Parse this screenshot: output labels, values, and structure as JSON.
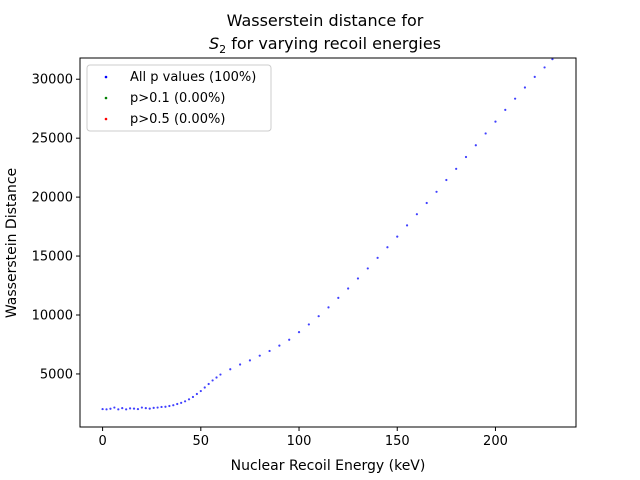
{
  "chart_data": {
    "type": "scatter",
    "title_line1": "Wasserstein distance for",
    "title_line2_math": "S",
    "title_line2_sub": "2",
    "title_line2_rest": " for varying recoil energies",
    "xlabel": "Nuclear Recoil Energy (keV)",
    "ylabel": "Wasserstein Distance",
    "xlim": [
      -11.5,
      241
    ],
    "ylim": [
      500,
      31800
    ],
    "x_ticks": [
      0,
      50,
      100,
      150,
      200
    ],
    "x_tick_labels": [
      "0",
      "50",
      "100",
      "150",
      "200"
    ],
    "y_ticks": [
      5000,
      10000,
      15000,
      20000,
      25000,
      30000
    ],
    "y_tick_labels": [
      "5000",
      "10000",
      "15000",
      "20000",
      "25000",
      "30000"
    ],
    "grid": false,
    "legend_position": "top-left",
    "series": [
      {
        "name": "All p values (100%)",
        "color": "#0000ff",
        "points": [
          [
            0,
            2020
          ],
          [
            2,
            2000
          ],
          [
            4,
            2050
          ],
          [
            6,
            2150
          ],
          [
            8,
            2000
          ],
          [
            10,
            2100
          ],
          [
            12,
            2000
          ],
          [
            14,
            2080
          ],
          [
            16,
            2060
          ],
          [
            18,
            2020
          ],
          [
            20,
            2150
          ],
          [
            22,
            2100
          ],
          [
            24,
            2060
          ],
          [
            26,
            2120
          ],
          [
            28,
            2150
          ],
          [
            30,
            2200
          ],
          [
            32,
            2220
          ],
          [
            34,
            2280
          ],
          [
            36,
            2350
          ],
          [
            38,
            2450
          ],
          [
            40,
            2550
          ],
          [
            42,
            2680
          ],
          [
            44,
            2850
          ],
          [
            46,
            3050
          ],
          [
            48,
            3300
          ],
          [
            50,
            3550
          ],
          [
            52,
            3850
          ],
          [
            54,
            4150
          ],
          [
            56,
            4450
          ],
          [
            58,
            4700
          ],
          [
            60,
            4950
          ],
          [
            65,
            5400
          ],
          [
            70,
            5800
          ],
          [
            75,
            6150
          ],
          [
            80,
            6550
          ],
          [
            85,
            6950
          ],
          [
            90,
            7400
          ],
          [
            95,
            7900
          ],
          [
            100,
            8550
          ],
          [
            105,
            9200
          ],
          [
            110,
            9900
          ],
          [
            115,
            10650
          ],
          [
            120,
            11450
          ],
          [
            125,
            12250
          ],
          [
            130,
            13100
          ],
          [
            135,
            13950
          ],
          [
            140,
            14850
          ],
          [
            145,
            15750
          ],
          [
            150,
            16650
          ],
          [
            155,
            17600
          ],
          [
            160,
            18550
          ],
          [
            165,
            19500
          ],
          [
            170,
            20450
          ],
          [
            175,
            21450
          ],
          [
            180,
            22400
          ],
          [
            185,
            23400
          ],
          [
            190,
            24400
          ],
          [
            195,
            25400
          ],
          [
            200,
            26400
          ],
          [
            205,
            27400
          ],
          [
            210,
            28350
          ],
          [
            215,
            29300
          ],
          [
            220,
            30200
          ],
          [
            225,
            31000
          ],
          [
            229,
            31700
          ]
        ]
      },
      {
        "name": "p>0.1 (0.00%)",
        "color": "#008000",
        "points": []
      },
      {
        "name": "p>0.5 (0.00%)",
        "color": "#ff0000",
        "points": []
      }
    ]
  }
}
